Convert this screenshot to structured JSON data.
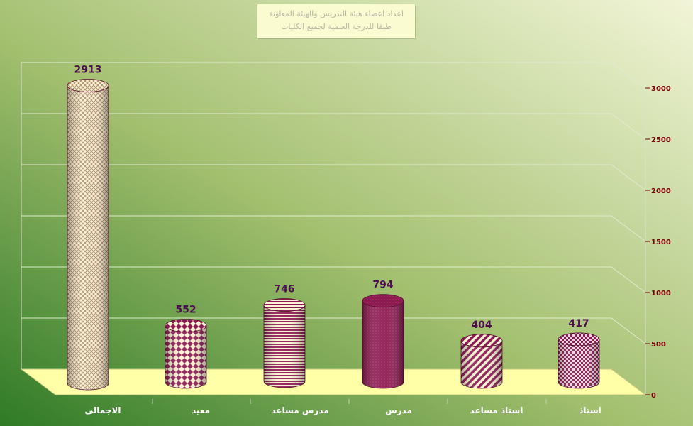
{
  "chart_data": {
    "type": "bar",
    "title": [
      "اعداد اعضاء هيئة التدريس والهيئة المعاونة",
      "طبقا للدرجة العلمية لجميع الكليات"
    ],
    "categories": [
      "الاجمالى",
      "معيد",
      "مدرس مساعد",
      "مدرس",
      "استاذ مساعد",
      "استاذ"
    ],
    "values": [
      2913,
      552,
      746,
      794,
      404,
      417
    ],
    "yticks": [
      0,
      500,
      1000,
      1500,
      2000,
      2500,
      3000
    ],
    "ylim": [
      0,
      3000
    ],
    "y_axis_side": "right",
    "grid": true,
    "data_labels": true,
    "legend": "none",
    "colors": {
      "background_dark": "#2f7a26",
      "background_light": "#f2f5d8",
      "floor": "#ffffa8",
      "value_label": "#4d0f4f",
      "tick_label": "#7a0000",
      "category_label": "#ffffff",
      "bar_maroon": "#8e1a52",
      "bar_cream": "#fbf3d6"
    }
  }
}
